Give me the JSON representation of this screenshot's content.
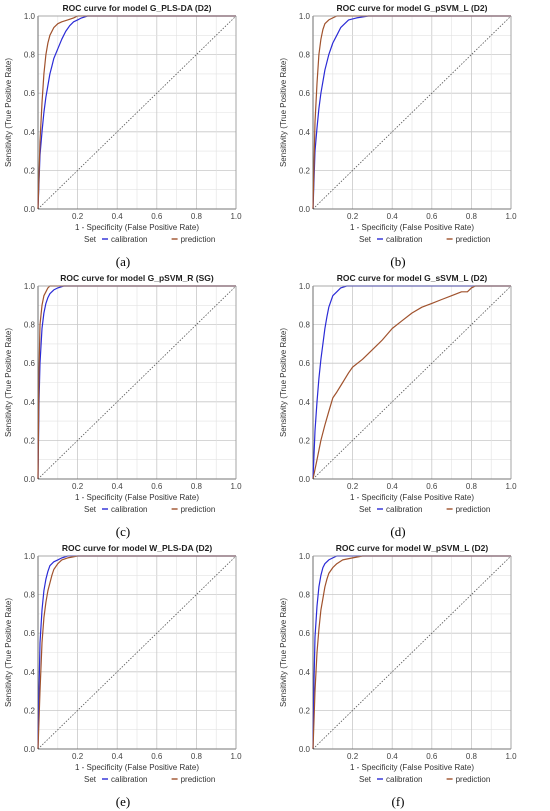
{
  "chart_data": [
    {
      "panel_label": "(a)",
      "type": "line",
      "title": "ROC curve for model G_PLS-DA (D2)",
      "xlabel": "1 - Specificity (False Positive Rate)",
      "ylabel": "Sensitivity (True Positive Rate)",
      "xlim": [
        0,
        1
      ],
      "ylim": [
        0,
        1
      ],
      "ticks": [
        "0.0",
        "0.2",
        "0.4",
        "0.6",
        "0.8",
        "1.0"
      ],
      "grid": true,
      "legend": {
        "title": "Set",
        "position": "bottom",
        "entries": [
          "calibration",
          "prediction"
        ]
      },
      "series": [
        {
          "name": "calibration",
          "color": "#2b2bd6",
          "x": [
            0,
            0.01,
            0.02,
            0.03,
            0.04,
            0.05,
            0.06,
            0.07,
            0.08,
            0.1,
            0.12,
            0.14,
            0.16,
            0.18,
            0.2,
            0.22,
            0.25,
            0.28
          ],
          "y": [
            0,
            0.28,
            0.4,
            0.5,
            0.58,
            0.64,
            0.7,
            0.74,
            0.78,
            0.83,
            0.88,
            0.92,
            0.95,
            0.97,
            0.98,
            0.99,
            1.0,
            1.0
          ]
        },
        {
          "name": "prediction",
          "color": "#a0522d",
          "x": [
            0,
            0.01,
            0.02,
            0.03,
            0.04,
            0.05,
            0.06,
            0.08,
            0.1,
            0.12,
            0.15,
            0.18,
            0.2
          ],
          "y": [
            0,
            0.35,
            0.55,
            0.7,
            0.8,
            0.86,
            0.9,
            0.94,
            0.96,
            0.97,
            0.98,
            0.99,
            1.0
          ]
        },
        {
          "name": "",
          "style": "dotted",
          "color": "#555555",
          "x": [
            0,
            1
          ],
          "y": [
            0,
            1
          ]
        }
      ]
    },
    {
      "panel_label": "(b)",
      "type": "line",
      "title": "ROC curve for model G_pSVM_L (D2)",
      "xlabel": "1 - Specificity (False Positive Rate)",
      "ylabel": "Sensitivity (True Positive Rate)",
      "xlim": [
        0,
        1
      ],
      "ylim": [
        0,
        1
      ],
      "ticks": [
        "0.0",
        "0.2",
        "0.4",
        "0.6",
        "0.8",
        "1.0"
      ],
      "grid": true,
      "legend": {
        "title": "Set",
        "position": "bottom",
        "entries": [
          "calibration",
          "prediction"
        ]
      },
      "series": [
        {
          "name": "calibration",
          "color": "#2b2bd6",
          "x": [
            0,
            0.01,
            0.02,
            0.03,
            0.04,
            0.05,
            0.06,
            0.08,
            0.1,
            0.12,
            0.14,
            0.16,
            0.18,
            0.22,
            0.28,
            0.33
          ],
          "y": [
            0,
            0.3,
            0.42,
            0.52,
            0.6,
            0.66,
            0.72,
            0.8,
            0.86,
            0.9,
            0.94,
            0.96,
            0.98,
            0.99,
            1.0,
            1.0
          ]
        },
        {
          "name": "prediction",
          "color": "#a0522d",
          "x": [
            0,
            0.01,
            0.02,
            0.03,
            0.04,
            0.05,
            0.06,
            0.08,
            0.1,
            0.12,
            0.15
          ],
          "y": [
            0,
            0.45,
            0.65,
            0.8,
            0.88,
            0.93,
            0.96,
            0.98,
            0.99,
            1.0,
            1.0
          ]
        },
        {
          "name": "",
          "style": "dotted",
          "color": "#555555",
          "x": [
            0,
            1
          ],
          "y": [
            0,
            1
          ]
        }
      ]
    },
    {
      "panel_label": "(c)",
      "type": "line",
      "title": "ROC curve for model G_pSVM_R (SG)",
      "xlabel": "1 - Specificity (False Positive Rate)",
      "ylabel": "Sensitivity (True Positive Rate)",
      "xlim": [
        0,
        1
      ],
      "ylim": [
        0,
        1
      ],
      "ticks": [
        "0.0",
        "0.2",
        "0.4",
        "0.6",
        "0.8",
        "1.0"
      ],
      "grid": true,
      "legend": {
        "title": "Set",
        "position": "bottom",
        "entries": [
          "calibration",
          "prediction"
        ]
      },
      "series": [
        {
          "name": "calibration",
          "color": "#2b2bd6",
          "x": [
            0,
            0.005,
            0.01,
            0.02,
            0.03,
            0.04,
            0.05,
            0.06,
            0.08,
            0.1,
            0.13,
            0.16,
            0.2
          ],
          "y": [
            0,
            0.4,
            0.6,
            0.78,
            0.86,
            0.91,
            0.94,
            0.96,
            0.98,
            0.99,
            1.0,
            1.0,
            1.0
          ]
        },
        {
          "name": "prediction",
          "color": "#a0522d",
          "x": [
            0,
            0.005,
            0.01,
            0.02,
            0.03,
            0.04,
            0.05,
            0.06,
            0.08
          ],
          "y": [
            0,
            0.55,
            0.8,
            0.9,
            0.95,
            0.97,
            0.99,
            1.0,
            1.0
          ]
        },
        {
          "name": "",
          "style": "dotted",
          "color": "#555555",
          "x": [
            0,
            1
          ],
          "y": [
            0,
            1
          ]
        }
      ]
    },
    {
      "panel_label": "(d)",
      "type": "line",
      "title": "ROC curve for model G_sSVM_L (D2)",
      "xlabel": "1 - Specificity (False Positive Rate)",
      "ylabel": "Sensitivity (True Positive Rate)",
      "xlim": [
        0,
        1
      ],
      "ylim": [
        0,
        1
      ],
      "ticks": [
        "0.0",
        "0.2",
        "0.4",
        "0.6",
        "0.8",
        "1.0"
      ],
      "grid": true,
      "legend": {
        "title": "Set",
        "position": "bottom",
        "entries": [
          "calibration",
          "prediction"
        ]
      },
      "series": [
        {
          "name": "calibration",
          "color": "#2b2bd6",
          "x": [
            0,
            0.01,
            0.02,
            0.03,
            0.04,
            0.05,
            0.06,
            0.07,
            0.08,
            0.09,
            0.1,
            0.12,
            0.14,
            0.17,
            0.2,
            0.25
          ],
          "y": [
            0,
            0.25,
            0.4,
            0.52,
            0.62,
            0.7,
            0.78,
            0.84,
            0.89,
            0.92,
            0.95,
            0.97,
            0.99,
            1.0,
            1.0,
            1.0
          ]
        },
        {
          "name": "prediction",
          "color": "#a0522d",
          "x": [
            0,
            0.02,
            0.04,
            0.06,
            0.08,
            0.1,
            0.12,
            0.15,
            0.18,
            0.2,
            0.25,
            0.3,
            0.35,
            0.4,
            0.45,
            0.5,
            0.55,
            0.6,
            0.65,
            0.7,
            0.75,
            0.78,
            0.8,
            0.82
          ],
          "y": [
            0,
            0.1,
            0.2,
            0.28,
            0.35,
            0.42,
            0.45,
            0.5,
            0.55,
            0.58,
            0.62,
            0.67,
            0.72,
            0.78,
            0.82,
            0.86,
            0.89,
            0.91,
            0.93,
            0.95,
            0.97,
            0.97,
            0.99,
            1.0
          ]
        },
        {
          "name": "",
          "style": "dotted",
          "color": "#555555",
          "x": [
            0,
            1
          ],
          "y": [
            0,
            1
          ]
        }
      ]
    },
    {
      "panel_label": "(e)",
      "type": "line",
      "title": "ROC curve for model W_PLS-DA (D2)",
      "xlabel": "1 - Specificity (False Positive Rate)",
      "ylabel": "Sensitivity (True Positive Rate)",
      "xlim": [
        0,
        1
      ],
      "ylim": [
        0,
        1
      ],
      "ticks": [
        "0.0",
        "0.2",
        "0.4",
        "0.6",
        "0.8",
        "1.0"
      ],
      "grid": true,
      "legend": {
        "title": "Set",
        "position": "bottom",
        "entries": [
          "calibration",
          "prediction"
        ]
      },
      "series": [
        {
          "name": "calibration",
          "color": "#2b2bd6",
          "x": [
            0,
            0.005,
            0.01,
            0.02,
            0.03,
            0.04,
            0.05,
            0.06,
            0.08,
            0.1,
            0.12,
            0.15,
            0.2,
            0.25
          ],
          "y": [
            0,
            0.3,
            0.55,
            0.72,
            0.82,
            0.88,
            0.92,
            0.95,
            0.97,
            0.98,
            0.99,
            1.0,
            1.0,
            1.0
          ]
        },
        {
          "name": "prediction",
          "color": "#a0522d",
          "x": [
            0,
            0.01,
            0.02,
            0.03,
            0.04,
            0.05,
            0.06,
            0.07,
            0.08,
            0.1,
            0.12,
            0.15,
            0.2
          ],
          "y": [
            0,
            0.3,
            0.55,
            0.68,
            0.76,
            0.82,
            0.86,
            0.9,
            0.93,
            0.96,
            0.98,
            0.99,
            1.0
          ]
        },
        {
          "name": "",
          "style": "dotted",
          "color": "#555555",
          "x": [
            0,
            1
          ],
          "y": [
            0,
            1
          ]
        }
      ]
    },
    {
      "panel_label": "(f)",
      "type": "line",
      "title": "ROC curve for model W_pSVM_L (D2)",
      "xlabel": "1 - Specificity (False Positive Rate)",
      "ylabel": "Sensitivity (True Positive Rate)",
      "xlim": [
        0,
        1
      ],
      "ylim": [
        0,
        1
      ],
      "ticks": [
        "0.0",
        "0.2",
        "0.4",
        "0.6",
        "0.8",
        "1.0"
      ],
      "grid": true,
      "legend": {
        "title": "Set",
        "position": "bottom",
        "entries": [
          "calibration",
          "prediction"
        ]
      },
      "series": [
        {
          "name": "calibration",
          "color": "#2b2bd6",
          "x": [
            0,
            0.005,
            0.01,
            0.02,
            0.03,
            0.04,
            0.05,
            0.06,
            0.08,
            0.1,
            0.12,
            0.15,
            0.2,
            0.25
          ],
          "y": [
            0,
            0.35,
            0.58,
            0.74,
            0.84,
            0.9,
            0.94,
            0.96,
            0.98,
            0.99,
            1.0,
            1.0,
            1.0,
            1.0
          ]
        },
        {
          "name": "prediction",
          "color": "#a0522d",
          "x": [
            0,
            0.01,
            0.02,
            0.03,
            0.04,
            0.05,
            0.06,
            0.07,
            0.08,
            0.1,
            0.12,
            0.15,
            0.2,
            0.25
          ],
          "y": [
            0,
            0.3,
            0.5,
            0.62,
            0.72,
            0.78,
            0.84,
            0.88,
            0.91,
            0.94,
            0.96,
            0.98,
            0.99,
            1.0
          ]
        },
        {
          "name": "",
          "style": "dotted",
          "color": "#555555",
          "x": [
            0,
            1
          ],
          "y": [
            0,
            1
          ]
        }
      ]
    }
  ]
}
